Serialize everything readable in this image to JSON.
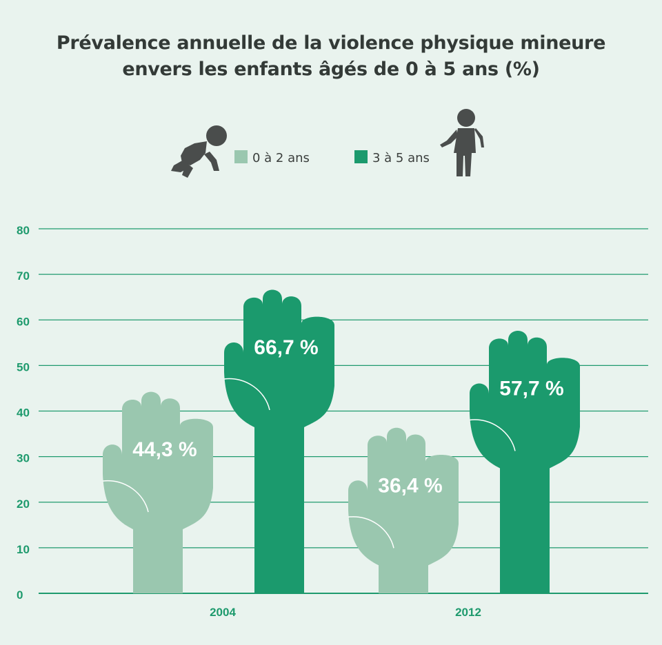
{
  "title_line1": "Prévalence annuelle de la violence physique mineure",
  "title_line2": "envers les enfants âgés de 0 à 5 ans (%)",
  "icons": {
    "toddler": "crawling-baby-icon",
    "child": "standing-child-icon"
  },
  "colors": {
    "light": "#9ac7af",
    "dark": "#1b9a6d",
    "grid": "#1e9a6d",
    "background": "#e9f3ee",
    "icon": "#4a4d4c"
  },
  "chart_data": {
    "type": "bar",
    "title": "Prévalence annuelle de la violence physique mineure envers les enfants âgés de 0 à 5 ans (%)",
    "categories": [
      "2004",
      "2012"
    ],
    "series": [
      {
        "name": "0 à 2 ans",
        "values": [
          44.3,
          36.4
        ],
        "labels": [
          "44,3 %",
          "36,4 %"
        ],
        "color": "#9ac7af"
      },
      {
        "name": "3 à 5 ans",
        "values": [
          66.7,
          57.7
        ],
        "labels": [
          "66,7 %",
          "57,7 %"
        ],
        "color": "#1b9a6d"
      }
    ],
    "yticks": [
      "0",
      "10",
      "20",
      "30",
      "40",
      "50",
      "60",
      "70",
      "80"
    ],
    "ylim": [
      0,
      80
    ],
    "grid": true,
    "legend": "top-center",
    "mark_style": "raised-hand"
  }
}
